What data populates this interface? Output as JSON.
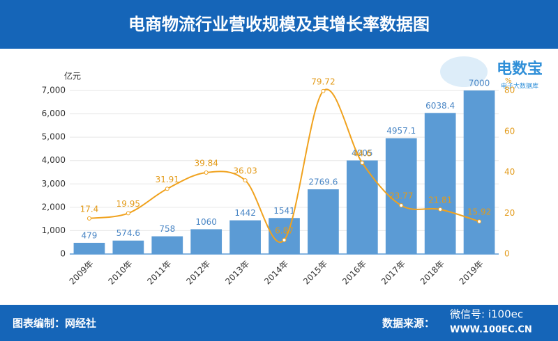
{
  "header": {
    "title": "电商物流行业营收规模及其增长率数据图"
  },
  "logo": {
    "name": "电数宝",
    "sub": "电子大数据库"
  },
  "footer": {
    "left": "图表编制：网经社",
    "right": "数据来源：",
    "watermark": "微信号: i100ec",
    "site": "WWW.100EC.CN"
  },
  "chart_data": {
    "type": "bar",
    "y_label": "亿元",
    "y2_label": "%",
    "categories": [
      "2009年",
      "2010年",
      "2011年",
      "2012年",
      "2013年",
      "2014年",
      "2015年",
      "2016年",
      "2017年",
      "2018年",
      "2019年"
    ],
    "series": [
      {
        "type": "bar",
        "color": "#5b9bd5",
        "values": [
          479,
          574.6,
          758,
          1060,
          1442,
          1541,
          2769.6,
          4005,
          4957.1,
          6038.4,
          7000
        ]
      },
      {
        "type": "line",
        "axis": "y2",
        "color": "#f0a21e",
        "values": [
          17.4,
          19.95,
          31.91,
          39.84,
          36.03,
          6.87,
          79.72,
          44.6,
          23.77,
          21.81,
          15.92
        ]
      }
    ],
    "ylim": [
      0,
      7000
    ],
    "yticks": [
      0,
      {
        "value": 1000,
        "label": "1,000"
      },
      {
        "value": 2000,
        "label": "2,000"
      },
      {
        "value": 3000,
        "label": "3,000"
      },
      {
        "value": 4000,
        "label": "4,000"
      },
      {
        "value": 5000,
        "label": "5,000"
      },
      {
        "value": 6000,
        "label": "6,000"
      },
      {
        "value": 7000,
        "label": "7,000"
      }
    ],
    "y2lim": [
      0,
      80
    ],
    "y2ticks": [
      0,
      20,
      40,
      60,
      80
    ],
    "grid": true
  }
}
